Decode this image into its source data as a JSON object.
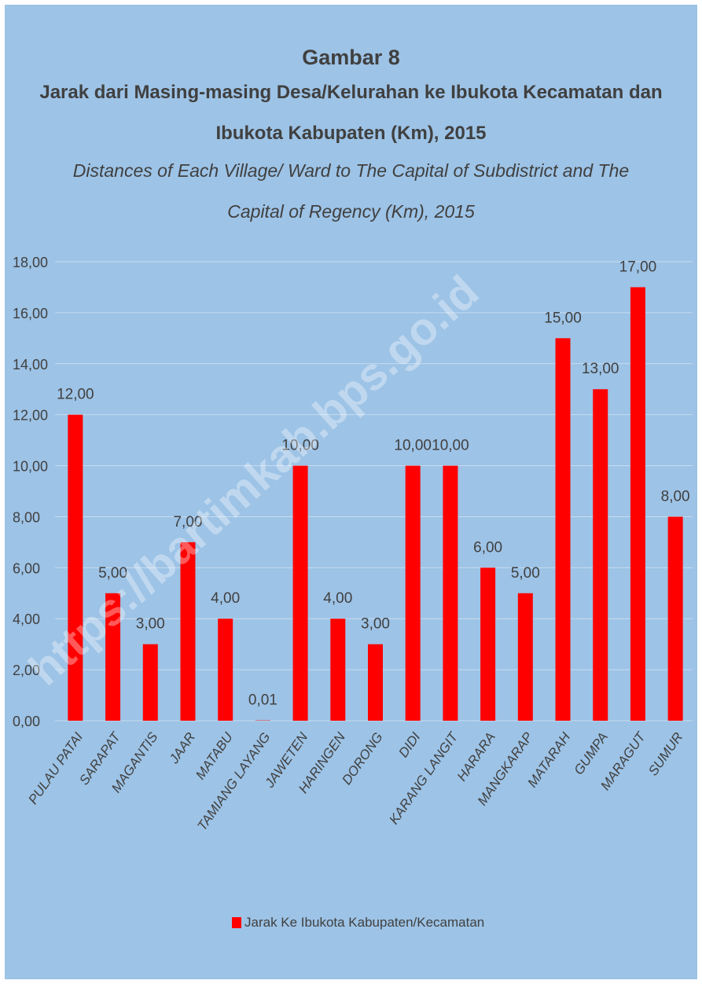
{
  "header": {
    "figure_label": "Gambar  8",
    "title_id_line1": "Jarak dari Masing-masing Desa/Kelurahan ke Ibukota Kecamatan dan",
    "title_id_line2": "Ibukota Kabupaten (Km), 2015",
    "title_en_line1": "Distances of Each Village/  Ward to The Capital of Subdistrict and The",
    "title_en_line2": "Capital of Regency (Km), 2015"
  },
  "watermark": "https://bartimkab.bps.go.id",
  "colors": {
    "background": "#9dc3e6",
    "bar": "#ff0000",
    "text": "#404040",
    "gridline": "#c8dcef"
  },
  "chart_data": {
    "type": "bar",
    "categories": [
      "PULAU PATAI",
      "SARAPAT",
      "MAGANTIS",
      "JAAR",
      "MATABU",
      "TAMIANG LAYANG",
      "JAWETEN",
      "HARINGEN",
      "DORONG",
      "DIDI",
      "KARANG LANGIT",
      "HARARA",
      "MANGKARAP",
      "MATARAH",
      "GUMPA",
      "MARAGUT",
      "SUMUR"
    ],
    "series": [
      {
        "name": "Jarak Ke Ibukota Kabupaten/Kecamatan",
        "values": [
          12,
          5,
          3,
          7,
          4,
          0.01,
          10,
          4,
          3,
          10,
          10,
          6,
          5,
          15,
          13,
          17,
          8
        ],
        "labels": [
          "12,00",
          "5,00",
          "3,00",
          "7,00",
          "4,00",
          "0,01",
          "10,00",
          "4,00",
          "3,00",
          "10,00",
          "10,00",
          "6,00",
          "5,00",
          "15,00",
          "13,00",
          "17,00",
          "8,00"
        ]
      }
    ],
    "ylim": [
      0,
      18
    ],
    "yticks": [
      "0,00",
      "2,00",
      "4,00",
      "6,00",
      "8,00",
      "10,00",
      "12,00",
      "14,00",
      "16,00",
      "18,00"
    ],
    "grid": true,
    "legend_position": "bottom"
  }
}
